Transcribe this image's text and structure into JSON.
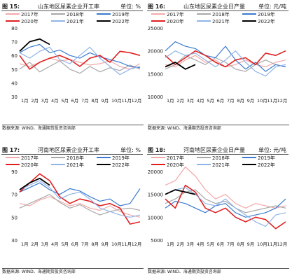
{
  "chart_data": [
    {
      "type": "line",
      "figure_label": "图 15:",
      "title": "山东地区尿素企业开工率",
      "unit": "单位: %",
      "source": "数据来源: WIND、海通期货投资咨询部",
      "x_ticks": [
        "1月",
        "2月",
        "3月",
        "4月",
        "5月",
        "6月",
        "7月",
        "8月",
        "9月",
        "10月",
        "11月",
        "12月"
      ],
      "yticks": [
        30,
        40,
        50,
        60,
        70,
        80
      ],
      "ylim": [
        30,
        80
      ],
      "series": [
        {
          "name": "2017年",
          "color": "#f4a8a8",
          "width": 1.2,
          "values": [
            54,
            52,
            55,
            58,
            56,
            57,
            55,
            53,
            54,
            56,
            52,
            50,
            54
          ]
        },
        {
          "name": "2018年",
          "color": "#a8a8a8",
          "width": 1.2,
          "values": [
            50,
            55,
            48,
            52,
            56,
            50,
            47,
            52,
            48,
            51,
            49,
            53,
            50
          ]
        },
        {
          "name": "2019年",
          "color": "#3a7ad0",
          "width": 1.2,
          "values": [
            62,
            66,
            68,
            62,
            64,
            60,
            58,
            62,
            59,
            57,
            55,
            52,
            51
          ]
        },
        {
          "name": "2020年",
          "color": "#e02020",
          "width": 1.6,
          "values": [
            60,
            50,
            55,
            58,
            60,
            57,
            52,
            58,
            60,
            55,
            63,
            62,
            60
          ]
        },
        {
          "name": "2021年",
          "color": "#8fb4e8",
          "width": 1.2,
          "values": [
            62,
            58,
            63,
            66,
            57,
            54,
            60,
            66,
            58,
            52,
            46,
            50,
            52
          ]
        },
        {
          "name": "2022年",
          "color": "#000000",
          "width": 1.8,
          "values": [
            63,
            70,
            72,
            68
          ]
        }
      ]
    },
    {
      "type": "line",
      "figure_label": "图 16:",
      "title": "山东地区尿素企业日产量",
      "unit": "单位: 元/吨",
      "source": "数据来源: WIND、海通期货投资咨询部",
      "x_ticks": [
        "1月",
        "2月",
        "3月",
        "4月",
        "5月",
        "6月",
        "7月",
        "8月",
        "9月",
        "10月",
        "11月",
        "12月"
      ],
      "yticks": [
        10000,
        15000,
        20000,
        25000
      ],
      "ylim": [
        10000,
        25000
      ],
      "series": [
        {
          "name": "2017年",
          "color": "#f4a8a8",
          "width": 1.2,
          "values": [
            17000,
            16500,
            18000,
            19000,
            17500,
            18000,
            16500,
            17000,
            18000,
            17000,
            16500,
            17500,
            18000
          ]
        },
        {
          "name": "2018年",
          "color": "#a8a8a8",
          "width": 1.2,
          "values": [
            16000,
            17000,
            19000,
            18000,
            17000,
            18500,
            17500,
            16000,
            15500,
            17000,
            18000,
            17000,
            16500
          ]
        },
        {
          "name": "2019年",
          "color": "#3a7ad0",
          "width": 1.2,
          "values": [
            20000,
            22000,
            21000,
            20500,
            19000,
            18500,
            21000,
            18000,
            16000,
            17500,
            15500,
            17000,
            16500
          ]
        },
        {
          "name": "2020年",
          "color": "#e02020",
          "width": 1.6,
          "values": [
            19000,
            17000,
            18500,
            20000,
            19000,
            17500,
            16500,
            18000,
            18500,
            17000,
            19500,
            19000,
            20000
          ]
        },
        {
          "name": "2021年",
          "color": "#8fb4e8",
          "width": 1.2,
          "values": [
            18500,
            20000,
            19000,
            19500,
            18000,
            16500,
            18000,
            20000,
            17500,
            15500,
            14500,
            16500,
            17000
          ]
        },
        {
          "name": "2022年",
          "color": "#000000",
          "width": 1.8,
          "values": [
            16500,
            17500,
            16000,
            17000
          ]
        }
      ]
    },
    {
      "type": "line",
      "figure_label": "图 17:",
      "title": "河南地区尿素企业开工率",
      "unit": "单位: %",
      "source": "数据来源: WIND、海通期货投资咨询部",
      "x_ticks": [
        "1月",
        "2月",
        "3月",
        "4月",
        "5月",
        "6月",
        "7月",
        "8月",
        "9月",
        "10月",
        "11月",
        "12月"
      ],
      "yticks": [
        30,
        50,
        70,
        90
      ],
      "ylim": [
        30,
        90
      ],
      "series": [
        {
          "name": "2017年",
          "color": "#f4a8a8",
          "width": 1.2,
          "values": [
            62,
            60,
            65,
            68,
            64,
            60,
            62,
            58,
            56,
            60,
            55,
            52,
            50
          ]
        },
        {
          "name": "2018年",
          "color": "#a8a8a8",
          "width": 1.2,
          "values": [
            58,
            62,
            66,
            70,
            63,
            58,
            61,
            56,
            52,
            55,
            57,
            58,
            56
          ]
        },
        {
          "name": "2019年",
          "color": "#3a7ad0",
          "width": 1.2,
          "values": [
            72,
            76,
            80,
            74,
            70,
            75,
            73,
            68,
            64,
            66,
            60,
            62,
            75
          ]
        },
        {
          "name": "2020年",
          "color": "#e02020",
          "width": 1.6,
          "values": [
            72,
            80,
            88,
            82,
            68,
            62,
            66,
            64,
            60,
            62,
            58,
            44,
            46
          ]
        },
        {
          "name": "2021年",
          "color": "#8fb4e8",
          "width": 1.2,
          "values": [
            74,
            78,
            82,
            76,
            66,
            70,
            72,
            66,
            58,
            55,
            52,
            50,
            52
          ]
        },
        {
          "name": "2022年",
          "color": "#000000",
          "width": 1.8,
          "values": [
            74,
            80,
            84,
            78
          ]
        }
      ]
    },
    {
      "type": "line",
      "figure_label": "图 18:",
      "title": "河南地区尿素企业日产量",
      "unit": "单位: 元/吨",
      "source": "数据来源: WIND、海通期货投资咨询部",
      "x_ticks": [
        "1月",
        "2月",
        "3月",
        "4月",
        "5月",
        "6月",
        "7月",
        "8月",
        "9月",
        "10月",
        "11月",
        "12月"
      ],
      "yticks": [
        5000,
        10000,
        15000,
        20000
      ],
      "ylim": [
        5000,
        20000
      ],
      "series": [
        {
          "name": "2017年",
          "color": "#f4a8a8",
          "width": 1.2,
          "values": [
            17000,
            18000,
            21000,
            19000,
            16000,
            14000,
            15000,
            13000,
            12000,
            13000,
            12500,
            12000,
            12500
          ]
        },
        {
          "name": "2018年",
          "color": "#a8a8a8",
          "width": 1.2,
          "values": [
            13000,
            14000,
            15500,
            16000,
            14000,
            13000,
            13500,
            12000,
            11000,
            11500,
            12000,
            12500,
            12000
          ]
        },
        {
          "name": "2019年",
          "color": "#3a7ad0",
          "width": 1.2,
          "values": [
            12000,
            13500,
            13000,
            12000,
            11000,
            12500,
            13000,
            11000,
            10000,
            10500,
            11000,
            12000,
            14000
          ]
        },
        {
          "name": "2020年",
          "color": "#e02020",
          "width": 1.6,
          "values": [
            14000,
            12000,
            17000,
            15500,
            12000,
            11000,
            12000,
            10000,
            9000,
            10000,
            9500,
            7500,
            9000
          ]
        },
        {
          "name": "2021年",
          "color": "#8fb4e8",
          "width": 1.2,
          "values": [
            15000,
            16000,
            16500,
            15000,
            13000,
            12500,
            14000,
            12000,
            10500,
            9000,
            8000,
            10500,
            11000
          ]
        },
        {
          "name": "2022年",
          "color": "#000000",
          "width": 1.8,
          "values": [
            15000,
            16000,
            15500,
            15000
          ]
        }
      ]
    }
  ]
}
